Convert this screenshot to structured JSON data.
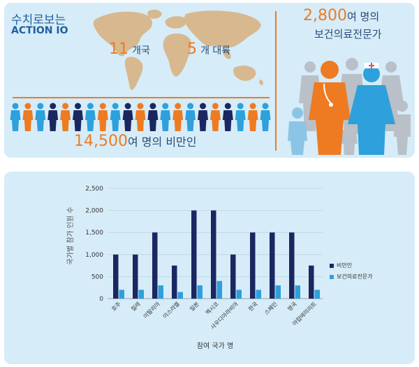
{
  "infographic": {
    "title_line1": "수치로보는",
    "title_line2": "ACTION IO",
    "countries_num": "11",
    "countries_unit": "개국",
    "continents_num": "5",
    "continents_unit": "개 대륙",
    "patients_num": "14,500",
    "patients_unit": "여 명의 비만인",
    "experts_num": "2,800",
    "experts_unit": "여 명의",
    "experts_line2": "보건의료전문가"
  },
  "colors": {
    "obese": "#1b2761",
    "expert": "#2ea0dc",
    "accent": "#ee7b22",
    "panel": "#d6ecf8"
  },
  "chart_data": {
    "type": "bar",
    "categories": [
      "호주",
      "칠레",
      "이탈리아",
      "이스라엘",
      "일본",
      "멕시코",
      "사우디아라비아",
      "한국",
      "스페인",
      "영국",
      "아랍에미리트"
    ],
    "series": [
      {
        "name": "비만인",
        "values": [
          1000,
          1000,
          1500,
          750,
          2000,
          2000,
          1000,
          1500,
          1500,
          1500,
          750
        ]
      },
      {
        "name": "보건의료전문가",
        "values": [
          200,
          200,
          300,
          150,
          300,
          400,
          200,
          200,
          300,
          300,
          200
        ]
      }
    ],
    "y_ticks": [
      "0",
      "500",
      "1,000",
      "1,500",
      "2,000",
      "2,500"
    ],
    "ylim": [
      0,
      2500
    ],
    "xlabel": "참여 국가 명",
    "ylabel": "국가별 참가 인원 수",
    "legend_position": "right"
  }
}
